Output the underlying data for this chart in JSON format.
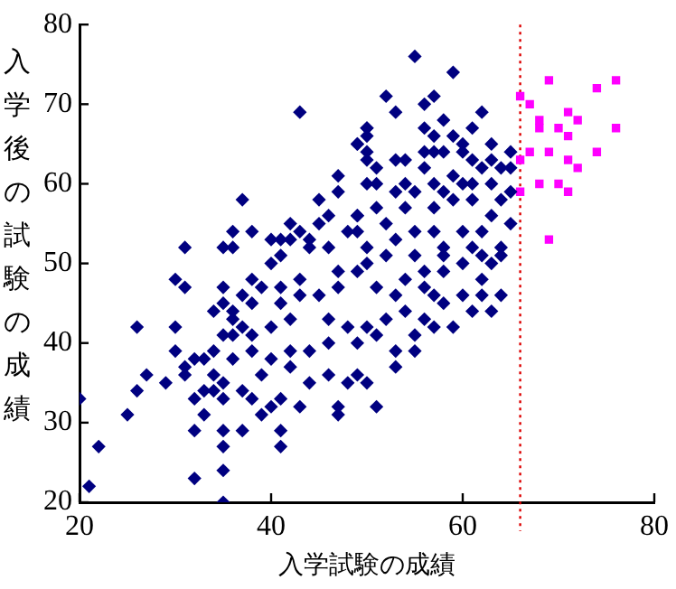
{
  "chart_data": {
    "type": "scatter",
    "xlabel": "入学試験の成績",
    "ylabel": "入学後の試験の成績",
    "xlim": [
      20,
      80
    ],
    "xticks": [
      20,
      40,
      60,
      80
    ],
    "ylim": [
      20,
      80
    ],
    "yticks": [
      20,
      30,
      40,
      50,
      60,
      70,
      80
    ],
    "grid": false,
    "legend": false,
    "ref_lines": [
      {
        "axis": "x",
        "value": 66,
        "color": "#dd0000",
        "line_style": "dotted"
      }
    ],
    "series": [
      {
        "color": "#000080",
        "marker": "diamond",
        "x": [
          43,
          49,
          50,
          50,
          47,
          47,
          37,
          45,
          46,
          42,
          45,
          49,
          36,
          38,
          43,
          31,
          35,
          36,
          40,
          41,
          42,
          44,
          41,
          44,
          46,
          48,
          49,
          55,
          59,
          52,
          56,
          57,
          53,
          58,
          62,
          56,
          61,
          50,
          49,
          50,
          57,
          59,
          60,
          63,
          50,
          53,
          54,
          56,
          57,
          58,
          60,
          61,
          63,
          65,
          65,
          51,
          56,
          59,
          62,
          64,
          50,
          51,
          54,
          57,
          60,
          61,
          63,
          65,
          53,
          55,
          58,
          49,
          51,
          54,
          57,
          59,
          61,
          64,
          63,
          65,
          52,
          55,
          57,
          60,
          62,
          64,
          50,
          53,
          58,
          61,
          47,
          49,
          30,
          31,
          35,
          38,
          39,
          40,
          37,
          38,
          35,
          34,
          36,
          36,
          26,
          30,
          37,
          38,
          35,
          36,
          30,
          32,
          33,
          34,
          36,
          31,
          31,
          27,
          26,
          29,
          34,
          33,
          34,
          35,
          20,
          25,
          32,
          33,
          35,
          37,
          38,
          39,
          40,
          41,
          43,
          47,
          47,
          32,
          35,
          37,
          41,
          22,
          35,
          41,
          35,
          32,
          21,
          35,
          38,
          40,
          42,
          44,
          46,
          48,
          49,
          39,
          42,
          44,
          46,
          48,
          40,
          42,
          46,
          41,
          43,
          45,
          47,
          41,
          43,
          51,
          50,
          53,
          53,
          55,
          55,
          57,
          59,
          61,
          63,
          64,
          62,
          60,
          62,
          63,
          64,
          60,
          58,
          56,
          56,
          57,
          58,
          56,
          54,
          52,
          50,
          51,
          49,
          53,
          51,
          54,
          50,
          52,
          55,
          58,
          62
        ],
        "values": [
          69,
          65,
          67,
          63,
          61,
          59,
          58,
          58,
          56,
          55,
          55,
          56,
          54,
          54,
          54,
          52,
          52,
          52,
          53,
          53,
          53,
          53,
          51,
          52,
          52,
          54,
          54,
          76,
          74,
          71,
          70,
          71,
          69,
          68,
          69,
          67,
          67,
          67,
          65,
          66,
          66,
          66,
          65,
          65,
          64,
          63,
          63,
          64,
          64,
          64,
          64,
          63,
          63,
          64,
          62,
          62,
          62,
          61,
          62,
          62,
          60,
          60,
          60,
          60,
          60,
          60,
          60,
          59,
          59,
          59,
          59,
          56,
          57,
          57,
          57,
          58,
          58,
          58,
          56,
          55,
          55,
          54,
          54,
          54,
          54,
          52,
          52,
          53,
          52,
          52,
          49,
          49,
          48,
          47,
          47,
          48,
          47,
          50,
          46,
          45,
          45,
          44,
          44,
          43,
          42,
          42,
          42,
          41,
          41,
          41,
          39,
          38,
          38,
          39,
          38,
          37,
          36,
          36,
          34,
          35,
          36,
          34,
          34,
          35,
          33,
          31,
          33,
          31,
          33,
          34,
          33,
          31,
          32,
          33,
          32,
          32,
          31,
          29,
          29,
          29,
          29,
          27,
          27,
          27,
          24,
          23,
          22,
          20,
          39,
          38,
          37,
          35,
          36,
          35,
          36,
          36,
          39,
          39,
          40,
          42,
          42,
          43,
          43,
          45,
          46,
          46,
          47,
          47,
          48,
          32,
          35,
          39,
          37,
          39,
          41,
          42,
          42,
          44,
          44,
          46,
          46,
          46,
          48,
          50,
          51,
          50,
          49,
          49,
          47,
          46,
          45,
          43,
          44,
          43,
          42,
          41,
          40,
          46,
          47,
          48,
          50,
          51,
          51,
          51,
          51
        ]
      },
      {
        "color": "#ff00ff",
        "marker": "square",
        "x": [
          69,
          74,
          76,
          66,
          67,
          71,
          72,
          68,
          68,
          70,
          71,
          76,
          66,
          67,
          69,
          71,
          72,
          74,
          66,
          68,
          70,
          71,
          69
        ],
        "values": [
          73,
          72,
          73,
          71,
          70,
          69,
          68,
          68,
          67,
          67,
          66,
          67,
          63,
          64,
          64,
          63,
          62,
          64,
          59,
          60,
          60,
          59,
          53
        ]
      }
    ]
  }
}
